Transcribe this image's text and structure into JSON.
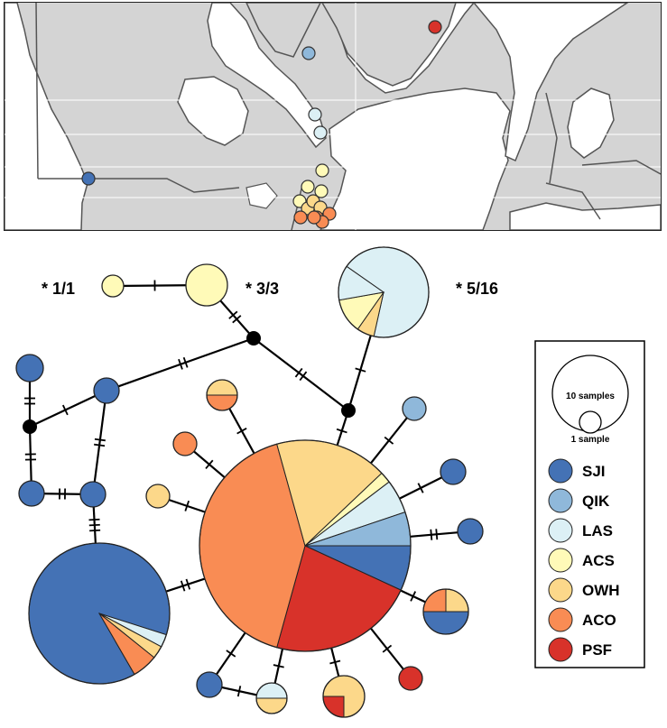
{
  "populations": [
    {
      "code": "SJI",
      "color": "#4472b5"
    },
    {
      "code": "QIK",
      "color": "#8fb8da"
    },
    {
      "code": "LAS",
      "color": "#dcf0f5"
    },
    {
      "code": "ACS",
      "color": "#fffab8"
    },
    {
      "code": "OWH",
      "color": "#fcd88a"
    },
    {
      "code": "ACO",
      "color": "#f98c54"
    },
    {
      "code": "PSF",
      "color": "#d8322a"
    }
  ],
  "map": {
    "land_color": "#d4d4d4",
    "water_color": "#ffffff",
    "border_color": "#555555",
    "sites": [
      {
        "pop": "SJI"
      },
      {
        "pop": "QIK"
      },
      {
        "pop": "LAS"
      },
      {
        "pop": "LAS"
      },
      {
        "pop": "ACS"
      },
      {
        "pop": "ACS"
      },
      {
        "pop": "ACS"
      },
      {
        "pop": "ACS"
      },
      {
        "pop": "OWH"
      },
      {
        "pop": "OWH"
      },
      {
        "pop": "OWH"
      },
      {
        "pop": "ACO"
      },
      {
        "pop": "ACO"
      },
      {
        "pop": "ACO"
      },
      {
        "pop": "ACO"
      },
      {
        "pop": "ACO"
      },
      {
        "pop": "PSF"
      }
    ]
  },
  "network": {
    "annotations": [
      "* 1/1",
      "* 3/3",
      "* 5/16"
    ],
    "legend": {
      "size_large_label": "10 samples",
      "size_small_label": "1 sample",
      "entries": [
        "SJI",
        "QIK",
        "LAS",
        "ACS",
        "OWH",
        "ACO",
        "PSF"
      ]
    },
    "haplotypes": [
      {
        "id": "h-acs-1",
        "total": 1,
        "composition": [
          {
            "pop": "ACS",
            "n": 1
          }
        ]
      },
      {
        "id": "h-acs-3",
        "total": 3,
        "composition": [
          {
            "pop": "ACS",
            "n": 3
          }
        ]
      },
      {
        "id": "h-las-16",
        "total": 16,
        "composition": [
          {
            "pop": "LAS",
            "n": 11
          },
          {
            "pop": "OWH",
            "n": 1
          },
          {
            "pop": "ACS",
            "n": 2
          },
          {
            "pop": "LAS",
            "n": 2
          }
        ]
      },
      {
        "id": "h-main",
        "total": 58,
        "composition": [
          {
            "pop": "SJI",
            "n": 4
          },
          {
            "pop": "PSF",
            "n": 13
          },
          {
            "pop": "ACO",
            "n": 24
          },
          {
            "pop": "OWH",
            "n": 10
          },
          {
            "pop": "ACS",
            "n": 1
          },
          {
            "pop": "LAS",
            "n": 3
          },
          {
            "pop": "QIK",
            "n": 3
          }
        ]
      },
      {
        "id": "h-sji-big",
        "total": 34,
        "composition": [
          {
            "pop": "SJI",
            "n": 30
          },
          {
            "pop": "LAS",
            "n": 1
          },
          {
            "pop": "OWH",
            "n": 1
          },
          {
            "pop": "ACO",
            "n": 2
          }
        ]
      },
      {
        "id": "h-sji-a",
        "total": 1,
        "composition": [
          {
            "pop": "SJI",
            "n": 1
          }
        ]
      },
      {
        "id": "h-sji-b",
        "total": 1,
        "composition": [
          {
            "pop": "SJI",
            "n": 1
          }
        ]
      },
      {
        "id": "h-sji-c",
        "total": 1,
        "composition": [
          {
            "pop": "SJI",
            "n": 1
          }
        ]
      },
      {
        "id": "h-sji-d",
        "total": 1,
        "composition": [
          {
            "pop": "SJI",
            "n": 1
          }
        ]
      },
      {
        "id": "h-sji-e",
        "total": 1,
        "composition": [
          {
            "pop": "SJI",
            "n": 1
          }
        ]
      },
      {
        "id": "h-sji-f",
        "total": 1,
        "composition": [
          {
            "pop": "SJI",
            "n": 1
          }
        ]
      },
      {
        "id": "h-sji-g",
        "total": 1,
        "composition": [
          {
            "pop": "SJI",
            "n": 1
          }
        ]
      },
      {
        "id": "h-qik",
        "total": 1,
        "composition": [
          {
            "pop": "QIK",
            "n": 1
          }
        ]
      },
      {
        "id": "h-aco-owh",
        "total": 2,
        "composition": [
          {
            "pop": "OWH",
            "n": 1
          },
          {
            "pop": "ACO",
            "n": 1
          }
        ]
      },
      {
        "id": "h-aco-1",
        "total": 1,
        "composition": [
          {
            "pop": "ACO",
            "n": 1
          }
        ]
      },
      {
        "id": "h-owh-1",
        "total": 1,
        "composition": [
          {
            "pop": "OWH",
            "n": 1
          }
        ]
      },
      {
        "id": "h-mix-4",
        "total": 4,
        "composition": [
          {
            "pop": "SJI",
            "n": 2
          },
          {
            "pop": "ACO",
            "n": 1
          },
          {
            "pop": "OWH",
            "n": 1
          }
        ]
      },
      {
        "id": "h-psf-1",
        "total": 1,
        "composition": [
          {
            "pop": "PSF",
            "n": 1
          }
        ]
      },
      {
        "id": "h-owh-psf",
        "total": 4,
        "composition": [
          {
            "pop": "OWH",
            "n": 3
          },
          {
            "pop": "PSF",
            "n": 1
          }
        ]
      },
      {
        "id": "h-las-owh",
        "total": 2,
        "composition": [
          {
            "pop": "LAS",
            "n": 1
          },
          {
            "pop": "OWH",
            "n": 1
          }
        ]
      }
    ]
  }
}
